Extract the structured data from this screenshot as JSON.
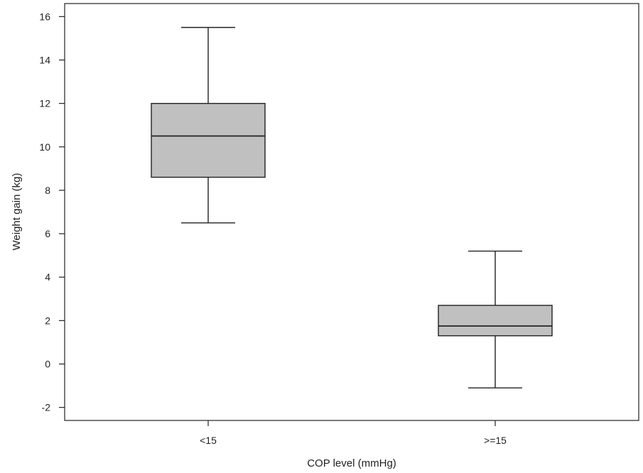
{
  "chart_data": {
    "type": "boxplot",
    "title": "",
    "xlabel": "COP level (mmHg)",
    "ylabel": "Weight gain (kg)",
    "ylim": [
      -2.6,
      16.6
    ],
    "yticks": [
      -2,
      0,
      2,
      4,
      6,
      8,
      10,
      12,
      14,
      16
    ],
    "grid": false,
    "legend": "none",
    "categories": [
      "<15",
      ">=15"
    ],
    "boxes": [
      {
        "category": "<15",
        "whisker_low": 6.5,
        "q1": 8.6,
        "median": 10.5,
        "q3": 12.0,
        "whisker_high": 15.5
      },
      {
        "category": ">=15",
        "whisker_low": -1.1,
        "q1": 1.3,
        "median": 1.75,
        "q3": 2.7,
        "whisker_high": 5.2
      }
    ],
    "colors": {
      "box_fill": "#c0c0c0",
      "line": "#222222",
      "background": "#ffffff"
    }
  }
}
